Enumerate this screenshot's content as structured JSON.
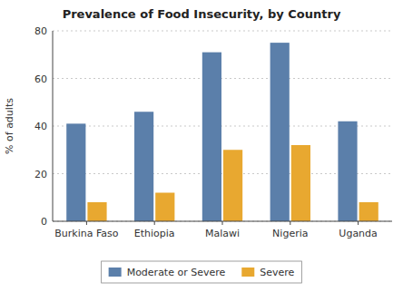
{
  "chart_data": {
    "type": "bar",
    "title": "Prevalence of Food Insecurity, by Country",
    "ylabel": "% of adults",
    "categories": [
      "Burkina Faso",
      "Ethiopia",
      "Malawi",
      "Nigeria",
      "Uganda"
    ],
    "series": [
      {
        "name": "Moderate or Severe",
        "color": "#5b7faa",
        "values": [
          41,
          46,
          71,
          75,
          42
        ]
      },
      {
        "name": "Severe",
        "color": "#e8a830",
        "values": [
          8,
          12,
          30,
          32,
          8
        ]
      }
    ],
    "ylim": [
      0,
      80
    ],
    "yticks": [
      0,
      20,
      40,
      60,
      80
    ],
    "grid": true,
    "legend": "bottom"
  }
}
